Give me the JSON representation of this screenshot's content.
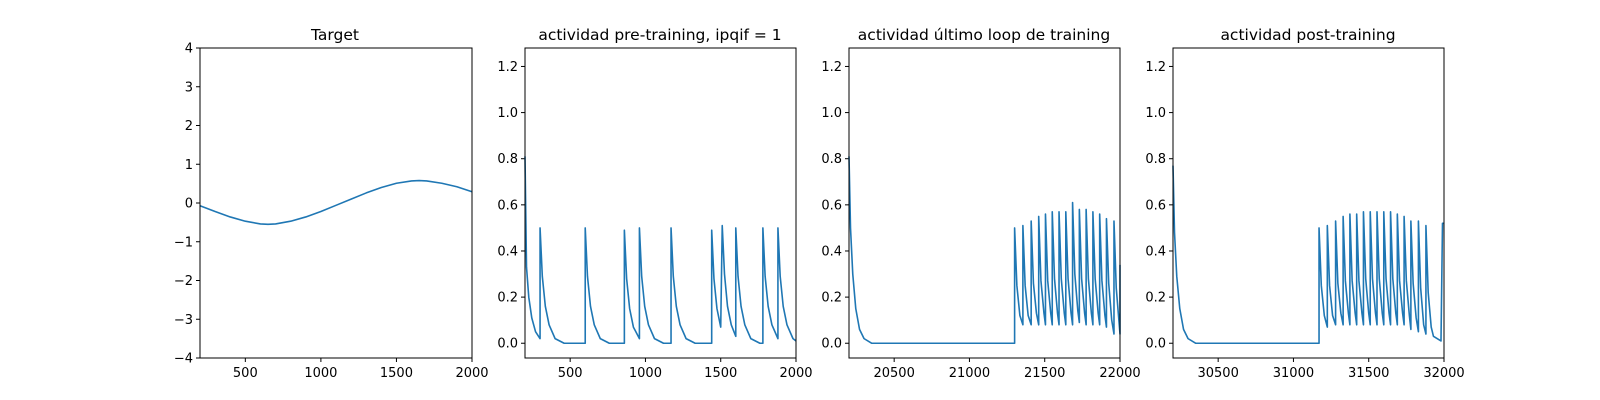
{
  "chart_data": [
    {
      "type": "line",
      "title": "Target",
      "xlabel": "",
      "ylabel": "",
      "xlim": [
        200,
        2000
      ],
      "ylim": [
        -4,
        4
      ],
      "xticks": [
        500,
        1000,
        1500,
        2000
      ],
      "yticks": [
        -4,
        -3,
        -2,
        -1,
        0,
        1,
        2,
        3,
        4
      ],
      "grid": false,
      "series": [
        {
          "color": "#1f77b4",
          "x": [
            200,
            300,
            400,
            500,
            600,
            650,
            700,
            800,
            900,
            1000,
            1100,
            1200,
            1300,
            1400,
            1500,
            1600,
            1650,
            1700,
            1800,
            1900,
            2000
          ],
          "y": [
            -0.07,
            -0.22,
            -0.36,
            -0.47,
            -0.54,
            -0.55,
            -0.54,
            -0.47,
            -0.36,
            -0.22,
            -0.06,
            0.1,
            0.26,
            0.4,
            0.51,
            0.57,
            0.58,
            0.57,
            0.51,
            0.42,
            0.29
          ]
        }
      ]
    },
    {
      "type": "line",
      "title": "actividad pre-training, ipqif = 1",
      "xlabel": "",
      "ylabel": "",
      "xlim": [
        200,
        2000
      ],
      "ylim": [
        -0.064,
        1.28
      ],
      "xticks": [
        500,
        1000,
        1500,
        2000
      ],
      "yticks": [
        0.0,
        0.2,
        0.4,
        0.6,
        0.8,
        1.0,
        1.2
      ],
      "grid": false,
      "series": [
        {
          "color": "#1f77b4",
          "x": [
            200,
            210,
            225,
            245,
            270,
            300,
            300,
            315,
            335,
            360,
            400,
            460,
            600,
            600,
            615,
            635,
            660,
            700,
            760,
            860,
            860,
            875,
            895,
            920,
            960,
            960,
            975,
            995,
            1020,
            1060,
            1120,
            1170,
            1170,
            1185,
            1205,
            1230,
            1270,
            1330,
            1440,
            1440,
            1455,
            1475,
            1500,
            1510,
            1525,
            1545,
            1570,
            1600,
            1600,
            1615,
            1635,
            1660,
            1700,
            1760,
            1780,
            1780,
            1795,
            1815,
            1840,
            1880,
            1880,
            1895,
            1915,
            1940,
            1980,
            2000
          ],
          "y": [
            0.81,
            0.33,
            0.2,
            0.11,
            0.05,
            0.02,
            0.5,
            0.29,
            0.16,
            0.08,
            0.02,
            0.0,
            0.0,
            0.5,
            0.29,
            0.16,
            0.08,
            0.02,
            0.0,
            0.0,
            0.49,
            0.28,
            0.15,
            0.07,
            0.02,
            0.5,
            0.29,
            0.16,
            0.08,
            0.02,
            0.0,
            0.0,
            0.5,
            0.29,
            0.16,
            0.08,
            0.02,
            0.0,
            0.0,
            0.49,
            0.28,
            0.15,
            0.07,
            0.51,
            0.3,
            0.16,
            0.08,
            0.03,
            0.5,
            0.29,
            0.16,
            0.08,
            0.02,
            0.0,
            0.0,
            0.5,
            0.29,
            0.16,
            0.08,
            0.02,
            0.5,
            0.29,
            0.16,
            0.08,
            0.02,
            0.01
          ]
        }
      ]
    },
    {
      "type": "line",
      "title": "actividad último loop de training",
      "xlabel": "",
      "ylabel": "",
      "xlim": [
        20200,
        22000
      ],
      "ylim": [
        -0.064,
        1.28
      ],
      "xticks": [
        20500,
        21000,
        21500,
        22000
      ],
      "yticks": [
        0.0,
        0.2,
        0.4,
        0.6,
        0.8,
        1.0,
        1.2
      ],
      "grid": false,
      "series": [
        {
          "color": "#1f77b4",
          "x": [
            20200,
            20210,
            20225,
            20245,
            20270,
            20300,
            20350,
            20450,
            21300,
            21300,
            21315,
            21335,
            21355,
            21355,
            21370,
            21390,
            21410,
            21410,
            21425,
            21445,
            21460,
            21460,
            21475,
            21495,
            21505,
            21505,
            21520,
            21540,
            21550,
            21550,
            21565,
            21585,
            21595,
            21595,
            21610,
            21630,
            21640,
            21640,
            21655,
            21675,
            21685,
            21685,
            21700,
            21720,
            21730,
            21730,
            21745,
            21765,
            21775,
            21775,
            21790,
            21810,
            21820,
            21820,
            21835,
            21855,
            21865,
            21865,
            21880,
            21900,
            21910,
            21910,
            21925,
            21945,
            21960,
            21960,
            21975,
            21995,
            22000,
            22000
          ],
          "y": [
            0.81,
            0.5,
            0.3,
            0.15,
            0.06,
            0.02,
            0.0,
            0.0,
            0.0,
            0.5,
            0.25,
            0.12,
            0.08,
            0.51,
            0.25,
            0.12,
            0.08,
            0.53,
            0.26,
            0.13,
            0.08,
            0.55,
            0.27,
            0.13,
            0.08,
            0.56,
            0.27,
            0.13,
            0.08,
            0.57,
            0.28,
            0.13,
            0.08,
            0.57,
            0.28,
            0.13,
            0.08,
            0.57,
            0.28,
            0.13,
            0.08,
            0.61,
            0.3,
            0.14,
            0.09,
            0.58,
            0.28,
            0.13,
            0.08,
            0.58,
            0.28,
            0.13,
            0.08,
            0.57,
            0.28,
            0.13,
            0.08,
            0.56,
            0.27,
            0.12,
            0.07,
            0.54,
            0.26,
            0.1,
            0.04,
            0.53,
            0.24,
            0.08,
            0.04,
            0.34
          ]
        }
      ]
    },
    {
      "type": "line",
      "title": "actividad post-training",
      "xlabel": "",
      "ylabel": "",
      "xlim": [
        30200,
        32000
      ],
      "ylim": [
        -0.064,
        1.28
      ],
      "xticks": [
        30500,
        31000,
        31500,
        32000
      ],
      "yticks": [
        0.0,
        0.2,
        0.4,
        0.6,
        0.8,
        1.0,
        1.2
      ],
      "grid": false,
      "series": [
        {
          "color": "#1f77b4",
          "x": [
            30200,
            30210,
            30225,
            30245,
            30270,
            30300,
            30350,
            30450,
            31170,
            31170,
            31185,
            31205,
            31225,
            31225,
            31240,
            31260,
            31280,
            31280,
            31295,
            31315,
            31330,
            31330,
            31345,
            31365,
            31375,
            31375,
            31390,
            31410,
            31420,
            31420,
            31435,
            31455,
            31465,
            31465,
            31480,
            31500,
            31510,
            31510,
            31525,
            31545,
            31555,
            31555,
            31570,
            31590,
            31600,
            31600,
            31615,
            31635,
            31645,
            31645,
            31660,
            31680,
            31690,
            31690,
            31705,
            31725,
            31735,
            31735,
            31750,
            31770,
            31780,
            31780,
            31795,
            31815,
            31830,
            31830,
            31845,
            31865,
            31880,
            31880,
            31895,
            31915,
            31930,
            31980,
            31990,
            32000
          ],
          "y": [
            0.77,
            0.48,
            0.29,
            0.15,
            0.06,
            0.02,
            0.0,
            0.0,
            0.0,
            0.5,
            0.25,
            0.12,
            0.07,
            0.51,
            0.25,
            0.12,
            0.08,
            0.53,
            0.26,
            0.13,
            0.08,
            0.55,
            0.27,
            0.13,
            0.08,
            0.56,
            0.27,
            0.13,
            0.08,
            0.56,
            0.27,
            0.13,
            0.08,
            0.57,
            0.28,
            0.13,
            0.08,
            0.57,
            0.28,
            0.13,
            0.08,
            0.57,
            0.28,
            0.13,
            0.08,
            0.57,
            0.28,
            0.13,
            0.08,
            0.57,
            0.28,
            0.13,
            0.08,
            0.56,
            0.27,
            0.13,
            0.08,
            0.55,
            0.27,
            0.12,
            0.06,
            0.53,
            0.26,
            0.11,
            0.05,
            0.53,
            0.24,
            0.08,
            0.04,
            0.51,
            0.22,
            0.07,
            0.03,
            0.01,
            0.52,
            0.52
          ]
        }
      ]
    }
  ]
}
